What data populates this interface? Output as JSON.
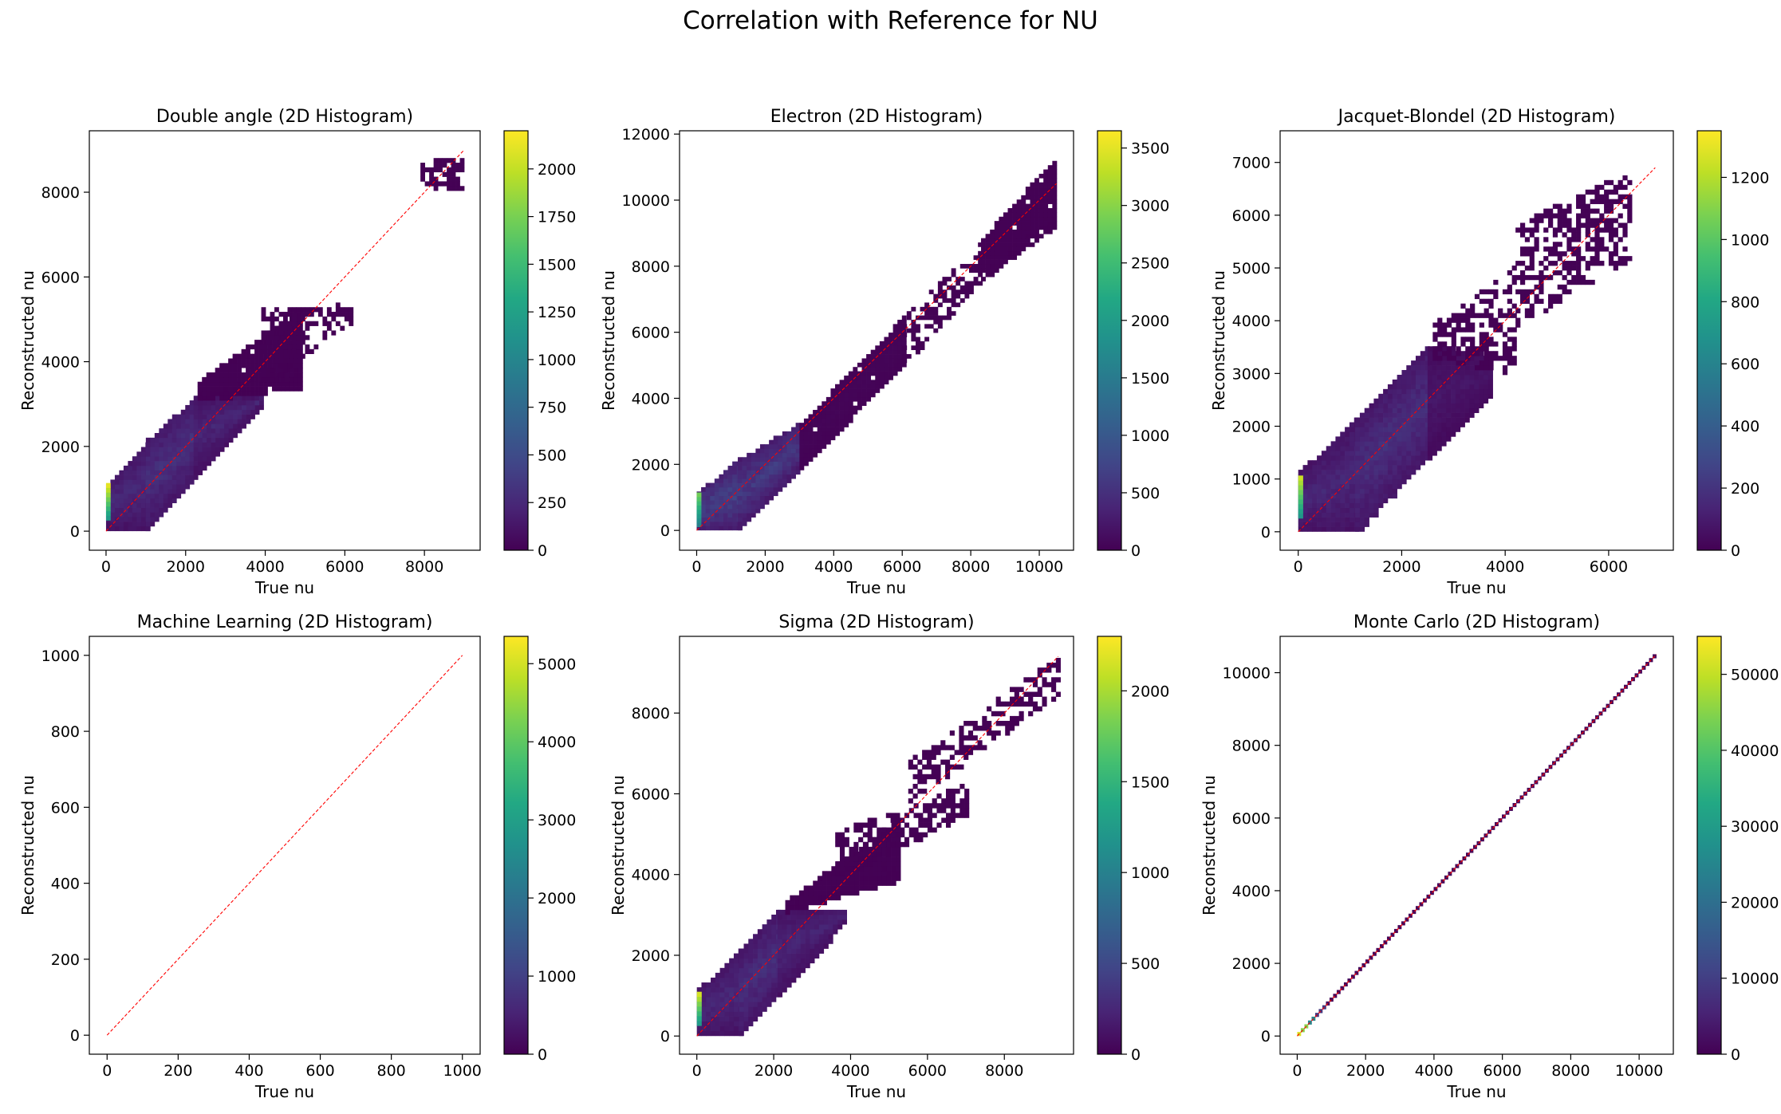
{
  "figure": {
    "title": "Correlation with Reference for NU"
  },
  "chart_data": [
    {
      "type": "heatmap",
      "title": "Double angle (2D Histogram)",
      "xlabel": "True nu",
      "ylabel": "Reconstructed nu",
      "xlim": [
        -420,
        9400
      ],
      "ylim": [
        -450,
        9450
      ],
      "xticks": [
        0,
        2000,
        4000,
        6000,
        8000
      ],
      "yticks": [
        0,
        2000,
        4000,
        6000,
        8000
      ],
      "colorbar": {
        "ticks": [
          0,
          250,
          500,
          750,
          1000,
          1250,
          1500,
          1750,
          2000
        ],
        "max": 2200
      },
      "reference_line": {
        "from": [
          0,
          0
        ],
        "to": [
          9000,
          9000
        ],
        "color": "#ff0000",
        "style": "dashed"
      },
      "bin_size": 110,
      "band_segments": [
        {
          "x0": 0,
          "x1": 1000,
          "lo_at_x0": 80,
          "lo_at_x1": 80,
          "hi_at_x0": 1100,
          "hi_at_x1": 2100,
          "mean_level": 260,
          "sparse": false
        },
        {
          "x0": 1000,
          "x1": 2200,
          "lo_at_x0": 80,
          "lo_at_x1": 1300,
          "hi_at_x0": 2100,
          "hi_at_x1": 3100,
          "mean_level": 300,
          "sparse": false
        },
        {
          "x0": 2200,
          "x1": 3900,
          "lo_at_x0": 1300,
          "lo_at_x1": 3000,
          "hi_at_x0": 3100,
          "hi_at_x1": 3100,
          "mean_level": 230,
          "sparse": false
        },
        {
          "x0": 2300,
          "x1": 4900,
          "lo_at_x0": 3100,
          "lo_at_x1": 3400,
          "hi_at_x0": 3500,
          "hi_at_x1": 5200,
          "mean_level": 5,
          "sparse": false
        },
        {
          "x0": 3900,
          "x1": 6200,
          "lo_at_x0": 3400,
          "lo_at_x1": 5000,
          "hi_at_x0": 5200,
          "hi_at_x1": 5300,
          "mean_level": 5,
          "sparse": true
        },
        {
          "x0": 7900,
          "x1": 9000,
          "lo_at_x0": 8100,
          "lo_at_x1": 8100,
          "hi_at_x0": 8800,
          "hi_at_x1": 8800,
          "mean_level": 5,
          "sparse": true
        }
      ],
      "hotspot": {
        "x0": 0,
        "x1": 110,
        "y0": 250,
        "y1": 1050,
        "level": 2150
      }
    },
    {
      "type": "heatmap",
      "title": "Electron (2D Histogram)",
      "xlabel": "True nu",
      "ylabel": "Reconstructed nu",
      "xlim": [
        -500,
        11000
      ],
      "ylim": [
        -600,
        12100
      ],
      "xticks": [
        0,
        2000,
        4000,
        6000,
        8000,
        10000
      ],
      "yticks": [
        0,
        2000,
        4000,
        6000,
        8000,
        10000,
        12000
      ],
      "colorbar": {
        "ticks": [
          0,
          500,
          1000,
          1500,
          2000,
          2500,
          3000,
          3500
        ],
        "max": 3650
      },
      "reference_line": {
        "from": [
          0,
          0
        ],
        "to": [
          10500,
          10500
        ],
        "color": "#ff0000",
        "style": "dashed"
      },
      "bin_size": 130,
      "band_segments": [
        {
          "x0": 0,
          "x1": 1200,
          "lo_at_x0": 0,
          "lo_at_x1": 0,
          "hi_at_x0": 1100,
          "hi_at_x1": 2100,
          "mean_level": 700,
          "sparse": false
        },
        {
          "x0": 1200,
          "x1": 3000,
          "lo_at_x0": 0,
          "lo_at_x1": 1900,
          "hi_at_x0": 2100,
          "hi_at_x1": 3200,
          "mean_level": 600,
          "sparse": false
        },
        {
          "x0": 3000,
          "x1": 6000,
          "lo_at_x0": 1900,
          "lo_at_x1": 5000,
          "hi_at_x0": 3200,
          "hi_at_x1": 6400,
          "mean_level": 40,
          "sparse": false
        },
        {
          "x0": 6000,
          "x1": 8300,
          "lo_at_x0": 5000,
          "lo_at_x1": 7600,
          "hi_at_x0": 6400,
          "hi_at_x1": 8800,
          "mean_level": 15,
          "sparse": true
        },
        {
          "x0": 8300,
          "x1": 10400,
          "lo_at_x0": 7600,
          "lo_at_x1": 9200,
          "hi_at_x0": 8800,
          "hi_at_x1": 11200,
          "mean_level": 10,
          "sparse": false
        }
      ],
      "hotspot": {
        "x0": 0,
        "x1": 130,
        "y0": 100,
        "y1": 1050,
        "level": 2900
      }
    },
    {
      "type": "heatmap",
      "title": "Jacquet-Blondel (2D Histogram)",
      "xlabel": "True nu",
      "ylabel": "Reconstructed nu",
      "xlim": [
        -350,
        7250
      ],
      "ylim": [
        -350,
        7600
      ],
      "xticks": [
        0,
        2000,
        4000,
        6000
      ],
      "yticks": [
        0,
        1000,
        2000,
        3000,
        4000,
        5000,
        6000,
        7000
      ],
      "colorbar": {
        "ticks": [
          0,
          200,
          400,
          600,
          800,
          1000,
          1200
        ],
        "max": 1350
      },
      "reference_line": {
        "from": [
          0,
          0
        ],
        "to": [
          6900,
          6900
        ],
        "color": "#ff0000",
        "style": "dashed"
      },
      "bin_size": 90,
      "band_segments": [
        {
          "x0": 0,
          "x1": 1100,
          "lo_at_x0": 0,
          "lo_at_x1": 0,
          "hi_at_x0": 1100,
          "hi_at_x1": 2100,
          "mean_level": 150,
          "sparse": false
        },
        {
          "x0": 1100,
          "x1": 2500,
          "lo_at_x0": 0,
          "lo_at_x1": 1400,
          "hi_at_x0": 2100,
          "hi_at_x1": 3500,
          "mean_level": 180,
          "sparse": false
        },
        {
          "x0": 2500,
          "x1": 3700,
          "lo_at_x0": 1400,
          "lo_at_x1": 2600,
          "hi_at_x0": 3500,
          "hi_at_x1": 3300,
          "mean_level": 80,
          "sparse": false
        },
        {
          "x0": 2600,
          "x1": 4200,
          "lo_at_x0": 3300,
          "lo_at_x1": 3000,
          "hi_at_x0": 3900,
          "hi_at_x1": 5000,
          "mean_level": 5,
          "sparse": true
        },
        {
          "x0": 4200,
          "x1": 6400,
          "lo_at_x0": 3900,
          "lo_at_x1": 5200,
          "hi_at_x0": 5800,
          "hi_at_x1": 6800,
          "mean_level": 5,
          "sparse": true
        }
      ],
      "hotspot": {
        "x0": 0,
        "x1": 90,
        "y0": 250,
        "y1": 1050,
        "level": 1300
      }
    },
    {
      "type": "heatmap",
      "title": "Machine Learning (2D Histogram)",
      "xlabel": "True nu",
      "ylabel": "Reconstructed nu",
      "xlim": [
        -50,
        1050
      ],
      "ylim": [
        -50,
        1050
      ],
      "xticks": [
        0,
        200,
        400,
        600,
        800,
        1000
      ],
      "yticks": [
        0,
        200,
        400,
        600,
        800,
        1000
      ],
      "colorbar": {
        "ticks": [
          0,
          1000,
          2000,
          3000,
          4000,
          5000
        ],
        "max": 5350
      },
      "reference_line": {
        "from": [
          0,
          0
        ],
        "to": [
          1000,
          1000
        ],
        "color": "#ff0000",
        "style": "dashed"
      },
      "bin_size": 20,
      "band_segments": []
    },
    {
      "type": "heatmap",
      "title": "Sigma (2D Histogram)",
      "xlabel": "True nu",
      "ylabel": "Reconstructed nu",
      "xlim": [
        -450,
        9800
      ],
      "ylim": [
        -450,
        9900
      ],
      "xticks": [
        0,
        2000,
        4000,
        6000,
        8000
      ],
      "yticks": [
        0,
        2000,
        4000,
        6000,
        8000
      ],
      "colorbar": {
        "ticks": [
          0,
          500,
          1000,
          1500,
          2000
        ],
        "max": 2300
      },
      "reference_line": {
        "from": [
          0,
          0
        ],
        "to": [
          9400,
          9400
        ],
        "color": "#ff0000",
        "style": "dashed"
      },
      "bin_size": 120,
      "band_segments": [
        {
          "x0": 0,
          "x1": 1100,
          "lo_at_x0": 0,
          "lo_at_x1": 0,
          "hi_at_x0": 1100,
          "hi_at_x1": 2100,
          "mean_level": 260,
          "sparse": false
        },
        {
          "x0": 1100,
          "x1": 2100,
          "lo_at_x0": 0,
          "lo_at_x1": 1000,
          "hi_at_x0": 2100,
          "hi_at_x1": 3100,
          "mean_level": 300,
          "sparse": false
        },
        {
          "x0": 2100,
          "x1": 3900,
          "lo_at_x0": 1000,
          "lo_at_x1": 2900,
          "hi_at_x0": 3100,
          "hi_at_x1": 3100,
          "mean_level": 230,
          "sparse": false
        },
        {
          "x0": 2300,
          "x1": 5300,
          "lo_at_x0": 3100,
          "lo_at_x1": 3900,
          "hi_at_x0": 3300,
          "hi_at_x1": 5400,
          "mean_level": 5,
          "sparse": false
        },
        {
          "x0": 3600,
          "x1": 7000,
          "lo_at_x0": 3900,
          "lo_at_x1": 5500,
          "hi_at_x0": 5000,
          "hi_at_x1": 6200,
          "mean_level": 5,
          "sparse": true
        },
        {
          "x0": 5500,
          "x1": 9400,
          "lo_at_x0": 5800,
          "lo_at_x1": 8500,
          "hi_at_x0": 6800,
          "hi_at_x1": 9400,
          "mean_level": 5,
          "sparse": true
        }
      ],
      "hotspot": {
        "x0": 0,
        "x1": 120,
        "y0": 250,
        "y1": 1050,
        "level": 2250
      }
    },
    {
      "type": "heatmap",
      "title": "Monte Carlo (2D Histogram)",
      "xlabel": "True nu",
      "ylabel": "Reconstructed nu",
      "xlim": [
        -500,
        11000
      ],
      "ylim": [
        -500,
        11000
      ],
      "xticks": [
        0,
        2000,
        4000,
        6000,
        8000,
        10000
      ],
      "yticks": [
        0,
        2000,
        4000,
        6000,
        8000,
        10000
      ],
      "colorbar": {
        "ticks": [
          0,
          10000,
          20000,
          30000,
          40000,
          50000
        ],
        "max": 55000
      },
      "reference_line": {
        "from": [
          0,
          0
        ],
        "to": [
          10500,
          10500
        ],
        "color": "#ff0000",
        "style": "dashed"
      },
      "bin_size": 105,
      "diagonal": {
        "x0": 0,
        "x1": 10500,
        "levels": [
          {
            "upto": 100,
            "level": 52000
          },
          {
            "upto": 300,
            "level": 45000
          },
          {
            "upto": 500,
            "level": 25000
          },
          {
            "upto": 800,
            "level": 9000
          },
          {
            "upto": 10500,
            "level": 1000
          }
        ]
      }
    }
  ]
}
